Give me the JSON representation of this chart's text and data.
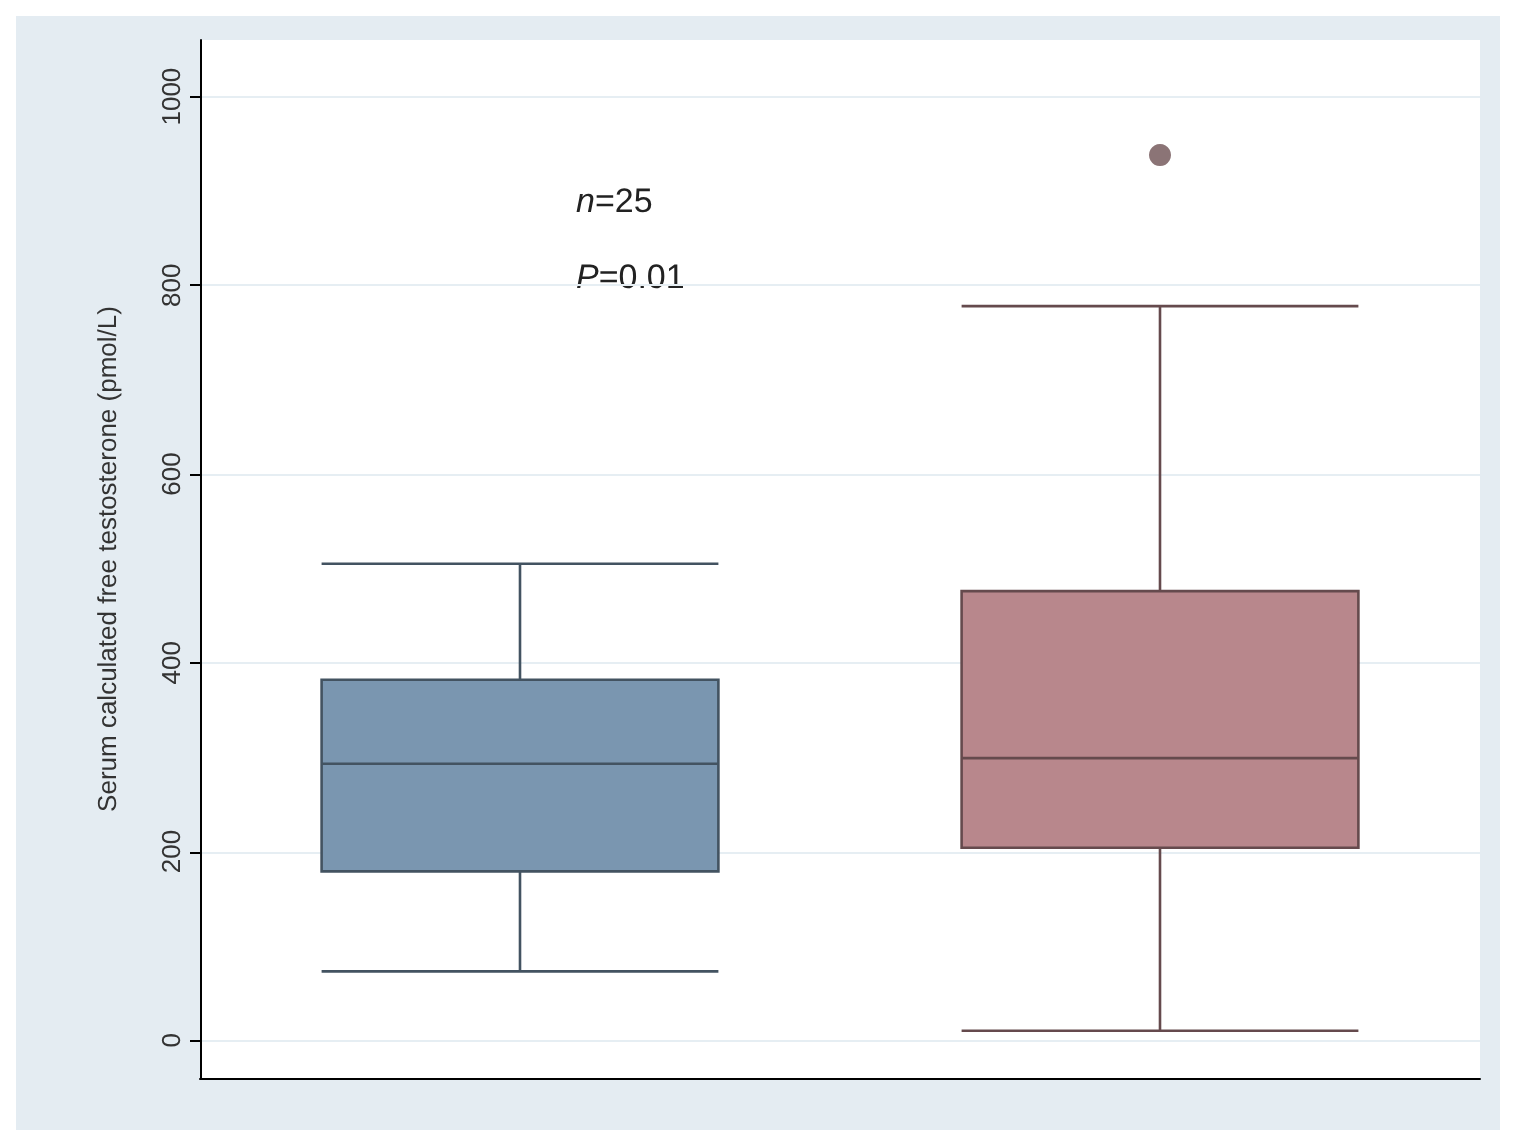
{
  "chart_data": {
    "type": "box",
    "ylabel": "Serum calculated free testosterone (pmol/L)",
    "categories": [
      null,
      null
    ],
    "boxes": [
      {
        "low": 73,
        "q1": 179,
        "median": 293,
        "q3": 382,
        "high": 505
      },
      {
        "low": 10,
        "q1": 204,
        "median": 299,
        "q3": 476,
        "high": 778,
        "outliers": [
          938
        ]
      }
    ],
    "colors": [
      "#7a96b0",
      "#b8878c"
    ],
    "ylim": [
      -40,
      1060
    ],
    "yticks": [
      0,
      200,
      400,
      600,
      800,
      1000
    ],
    "grid": "y",
    "annotations": [
      "n=25",
      "P=0.01"
    ]
  }
}
